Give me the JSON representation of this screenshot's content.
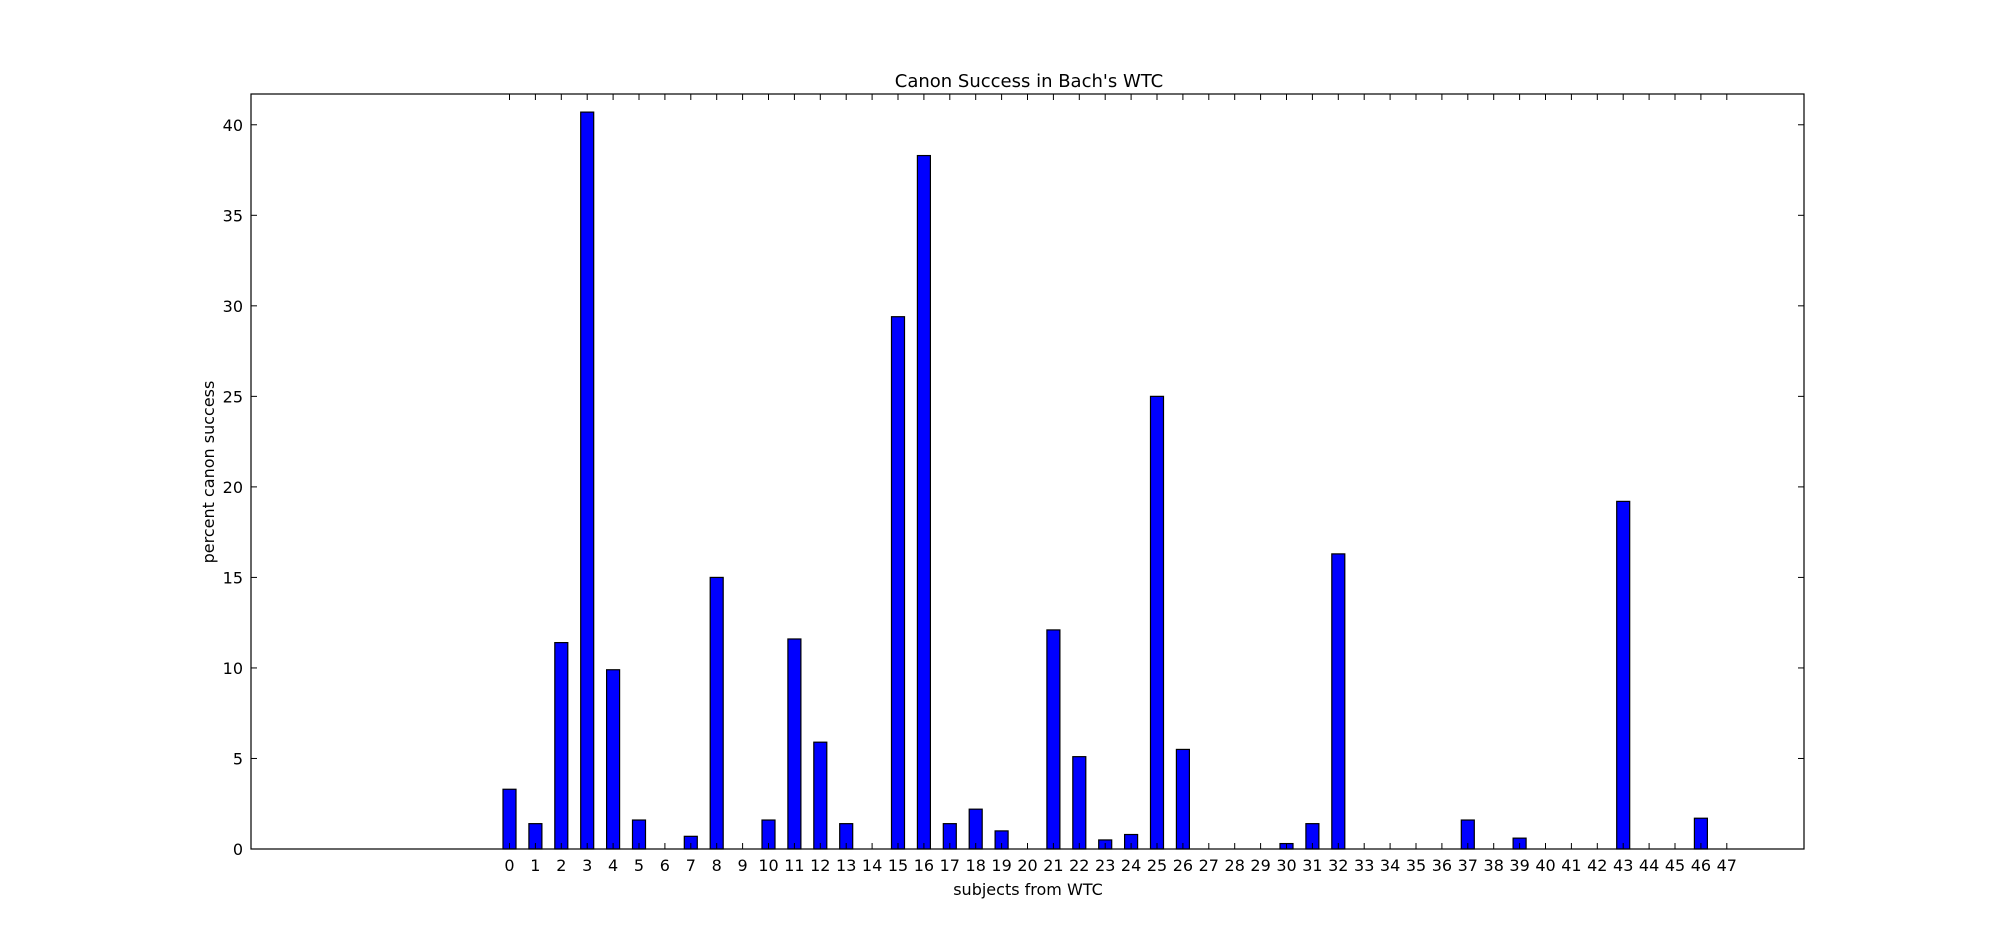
{
  "chart_data": {
    "type": "bar",
    "title": "Canon Success in Bach's WTC",
    "xlabel": "subjects from WTC",
    "ylabel": "percent canon success",
    "categories": [
      "0",
      "1",
      "2",
      "3",
      "4",
      "5",
      "6",
      "7",
      "8",
      "9",
      "10",
      "11",
      "12",
      "13",
      "14",
      "15",
      "16",
      "17",
      "18",
      "19",
      "20",
      "21",
      "22",
      "23",
      "24",
      "25",
      "26",
      "27",
      "28",
      "29",
      "30",
      "31",
      "32",
      "33",
      "34",
      "35",
      "36",
      "37",
      "38",
      "39",
      "40",
      "41",
      "42",
      "43",
      "44",
      "45",
      "46",
      "47"
    ],
    "values": [
      3.3,
      1.4,
      11.4,
      40.7,
      9.9,
      1.6,
      0,
      0.7,
      15.0,
      0,
      1.6,
      11.6,
      5.9,
      1.4,
      0,
      29.4,
      38.3,
      1.4,
      2.2,
      1.0,
      0,
      12.1,
      5.1,
      0.5,
      0.8,
      25.0,
      5.5,
      0,
      0,
      0,
      0.3,
      1.4,
      16.3,
      0,
      0,
      0,
      0,
      1.6,
      0,
      0.6,
      0,
      0,
      0,
      19.2,
      0,
      0,
      1.7,
      0
    ],
    "ylim": [
      0,
      41.7
    ],
    "yticks": [
      0,
      5,
      10,
      15,
      20,
      25,
      30,
      35,
      40
    ],
    "grid": false,
    "bar_color": "#0000ff",
    "edge_color": "#000000"
  }
}
